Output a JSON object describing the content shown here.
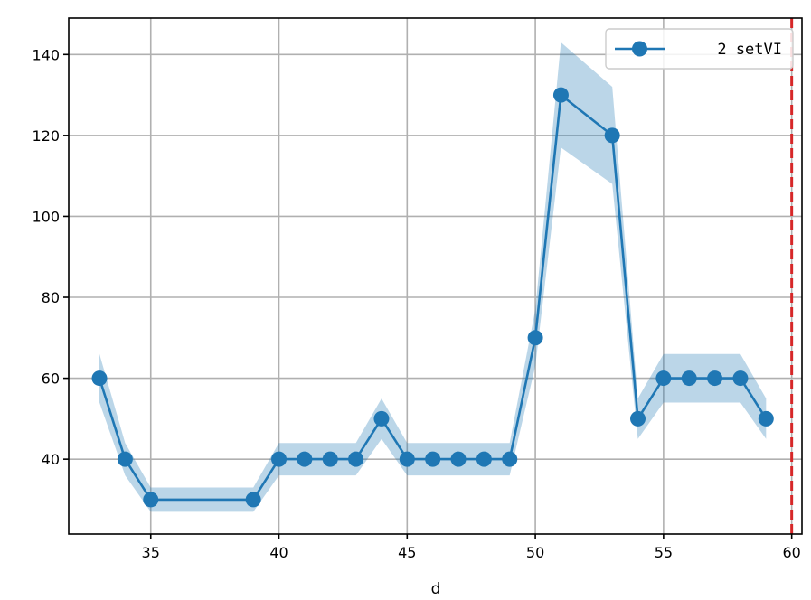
{
  "chart_data": {
    "type": "line",
    "title": "",
    "xlabel": "d",
    "ylabel": "",
    "xlim": [
      31.8,
      60.4
    ],
    "ylim": [
      21.5,
      149
    ],
    "xticks": [
      35,
      40,
      45,
      50,
      55,
      60
    ],
    "yticks": [
      40,
      60,
      80,
      100,
      120,
      140
    ],
    "grid": true,
    "legend_position": "top-right",
    "series": [
      {
        "name": "2 setVI",
        "color": "#1f77b4",
        "band_color": "#1f77b4",
        "x": [
          33,
          34,
          35,
          39,
          40,
          41,
          42,
          43,
          44,
          45,
          46,
          47,
          48,
          49,
          50,
          51,
          53,
          54,
          55,
          56,
          57,
          58,
          59
        ],
        "y": [
          60,
          40,
          30,
          30,
          40,
          40,
          40,
          40,
          50,
          40,
          40,
          40,
          40,
          40,
          70,
          130,
          120,
          50,
          60,
          60,
          60,
          60,
          50
        ],
        "band_lower": [
          54,
          36,
          27,
          27,
          36,
          36,
          36,
          36,
          45,
          36,
          36,
          36,
          36,
          36,
          63,
          117,
          108,
          45,
          54,
          54,
          54,
          54,
          45
        ],
        "band_upper": [
          66,
          44,
          33,
          33,
          44,
          44,
          44,
          44,
          55,
          44,
          44,
          44,
          44,
          44,
          77,
          143,
          132,
          55,
          66,
          66,
          66,
          66,
          55
        ]
      }
    ],
    "reference_line": {
      "x": 60,
      "color": "#d62728",
      "style": "dashed"
    }
  }
}
